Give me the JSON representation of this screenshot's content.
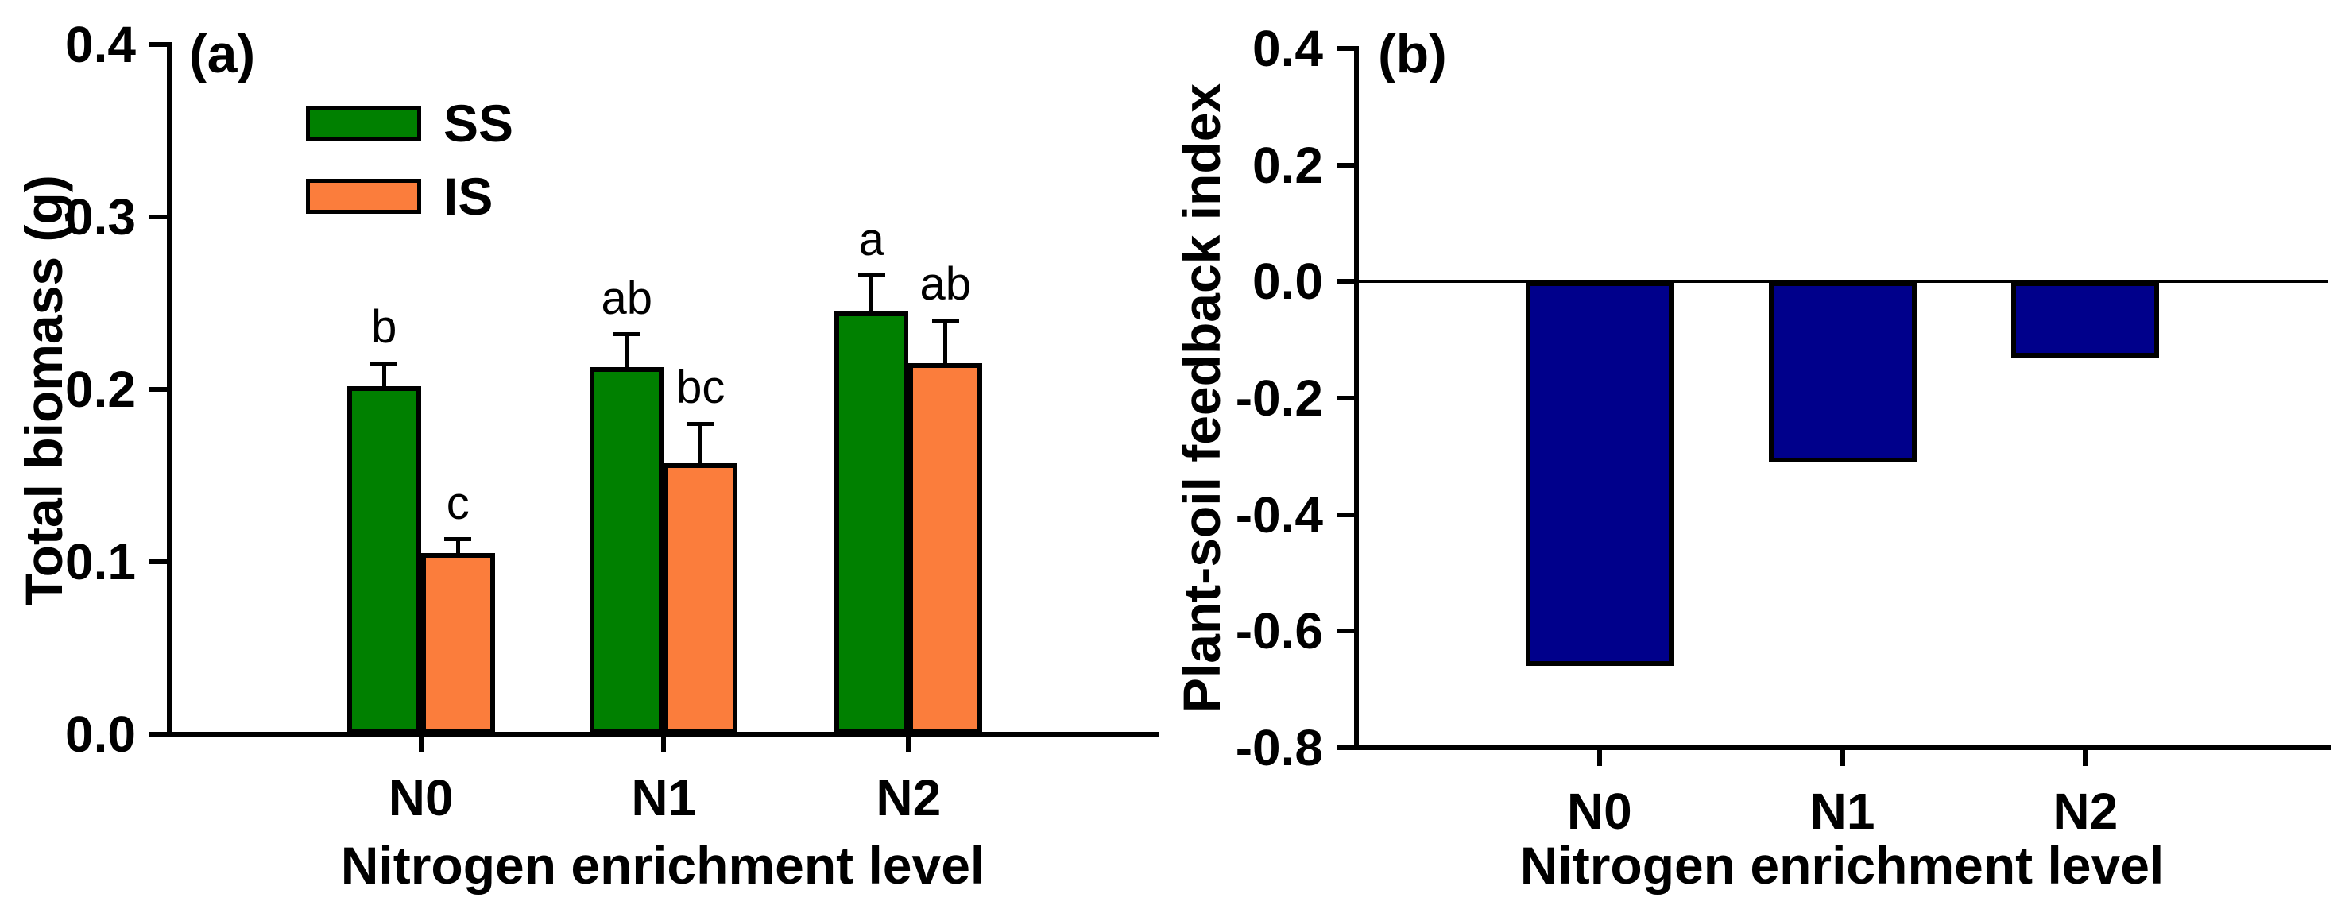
{
  "figure": {
    "background": "#ffffff",
    "axis_color": "#000000"
  },
  "chart_data": [
    {
      "id": "a",
      "type": "bar",
      "panel_label": "(a)",
      "x_title": "Nitrogen enrichment level",
      "y_title": "Total biomass (g)",
      "categories": [
        "N0",
        "N1",
        "N2"
      ],
      "y_axis": {
        "min": 0.0,
        "max": 0.4,
        "tick_values": [
          0.4,
          0.3,
          0.2,
          0.1,
          0.0
        ],
        "tick_labels": [
          "0.4",
          "0.3",
          "0.2",
          "0.1",
          "0.0"
        ]
      },
      "grid": false,
      "legend_position": "top-left-inside",
      "series": [
        {
          "name": "SS",
          "color": "#008000",
          "values": [
            0.202,
            0.213,
            0.245
          ],
          "errors": [
            0.013,
            0.019,
            0.021
          ],
          "letters": [
            "b",
            "ab",
            "a"
          ]
        },
        {
          "name": "IS",
          "color": "#FB7D3C",
          "values": [
            0.105,
            0.157,
            0.215
          ],
          "errors": [
            0.008,
            0.023,
            0.025
          ],
          "letters": [
            "c",
            "bc",
            "ab"
          ]
        }
      ],
      "legend": {
        "items": [
          {
            "label": "SS",
            "color": "#008000"
          },
          {
            "label": "IS",
            "color": "#FB7D3C"
          }
        ]
      }
    },
    {
      "id": "b",
      "type": "bar",
      "panel_label": "(b)",
      "x_title": "Nitrogen enrichment level",
      "y_title": "Plant-soil feedback index",
      "categories": [
        "N0",
        "N1",
        "N2"
      ],
      "y_axis": {
        "min": -0.8,
        "max": 0.4,
        "tick_values": [
          0.4,
          0.2,
          0.0,
          -0.2,
          -0.4,
          -0.6,
          -0.8
        ],
        "tick_labels": [
          "0.4",
          "0.2",
          "0.0",
          "-0.2",
          "-0.4",
          "-0.6",
          "-0.8"
        ]
      },
      "grid": false,
      "zero_line": true,
      "series": [
        {
          "name": "Plant-soil feedback index",
          "color": "#00008B",
          "values": [
            -0.66,
            -0.31,
            -0.13
          ],
          "errors": null,
          "letters": null
        }
      ]
    }
  ]
}
